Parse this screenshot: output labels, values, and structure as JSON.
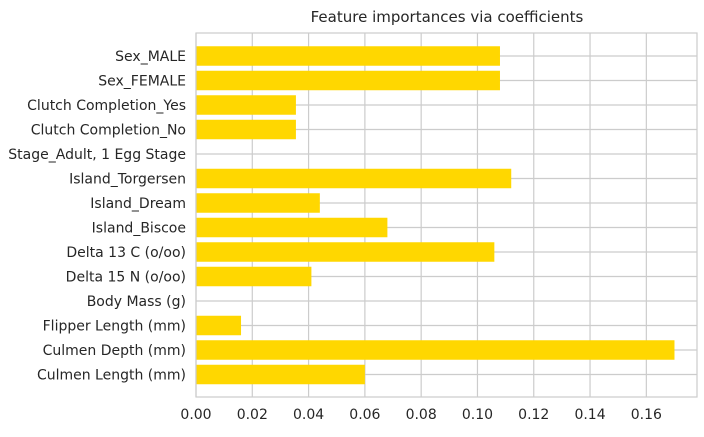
{
  "chart_data": {
    "type": "bar",
    "orientation": "horizontal",
    "title": "Feature importances via coefficients",
    "xlabel": "",
    "ylabel": "",
    "categories": [
      "Culmen Length (mm)",
      "Culmen Depth (mm)",
      "Flipper Length (mm)",
      "Body Mass (g)",
      "Delta 15 N (o/oo)",
      "Delta 13 C (o/oo)",
      "Island_Biscoe",
      "Island_Dream",
      "Island_Torgersen",
      "Stage_Adult, 1 Egg Stage",
      "Clutch Completion_No",
      "Clutch Completion_Yes",
      "Sex_FEMALE",
      "Sex_MALE"
    ],
    "values": [
      0.06,
      0.17,
      0.016,
      0.0,
      0.041,
      0.106,
      0.068,
      0.044,
      0.112,
      0.0,
      0.0355,
      0.0355,
      0.108,
      0.108
    ],
    "xlim": [
      0.0,
      0.178
    ],
    "xticks": [
      0.0,
      0.02,
      0.04,
      0.06,
      0.08,
      0.1,
      0.12,
      0.14,
      0.16
    ],
    "xtick_labels": [
      "0.00",
      "0.02",
      "0.04",
      "0.06",
      "0.08",
      "0.10",
      "0.12",
      "0.14",
      "0.16"
    ],
    "bar_color": "#ffd700",
    "grid": true,
    "grid_color": "#cccccc"
  }
}
